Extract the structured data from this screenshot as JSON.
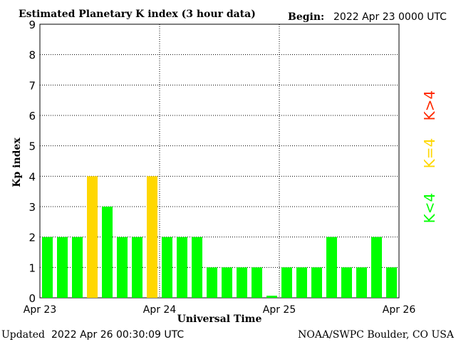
{
  "header": {
    "title": "Estimated Planetary K index (3 hour data)",
    "begin_label": "Begin:",
    "begin_value": "2022 Apr 23 0000 UTC"
  },
  "footer": {
    "updated_label": "Updated",
    "updated_value": "2022 Apr 26 00:30:09 UTC",
    "source": "NOAA/SWPC Boulder, CO USA"
  },
  "legend": {
    "high": "K>4",
    "equal": "K=4",
    "low": "K<4"
  },
  "colors": {
    "low": "#00ff00",
    "equal": "#ffd700",
    "high": "#ff2a00",
    "grid": "#000000",
    "background": "#ffffff"
  },
  "chart_data": {
    "type": "bar",
    "xlabel": "Universal Time",
    "ylabel": "Kp index",
    "ylim": [
      0,
      9
    ],
    "yticks": [
      0,
      1,
      2,
      3,
      4,
      5,
      6,
      7,
      8,
      9
    ],
    "xticks": [
      "Apr 23",
      "Apr 24",
      "Apr 25",
      "Apr 26"
    ],
    "interval_hours": 3,
    "grid": "dotted",
    "series": [
      {
        "values": [
          2,
          2,
          2,
          4,
          3,
          2,
          2,
          4,
          2,
          2,
          2,
          1,
          1,
          1,
          1,
          0.07,
          1,
          1,
          1,
          2,
          1,
          1,
          2,
          1
        ]
      }
    ]
  }
}
